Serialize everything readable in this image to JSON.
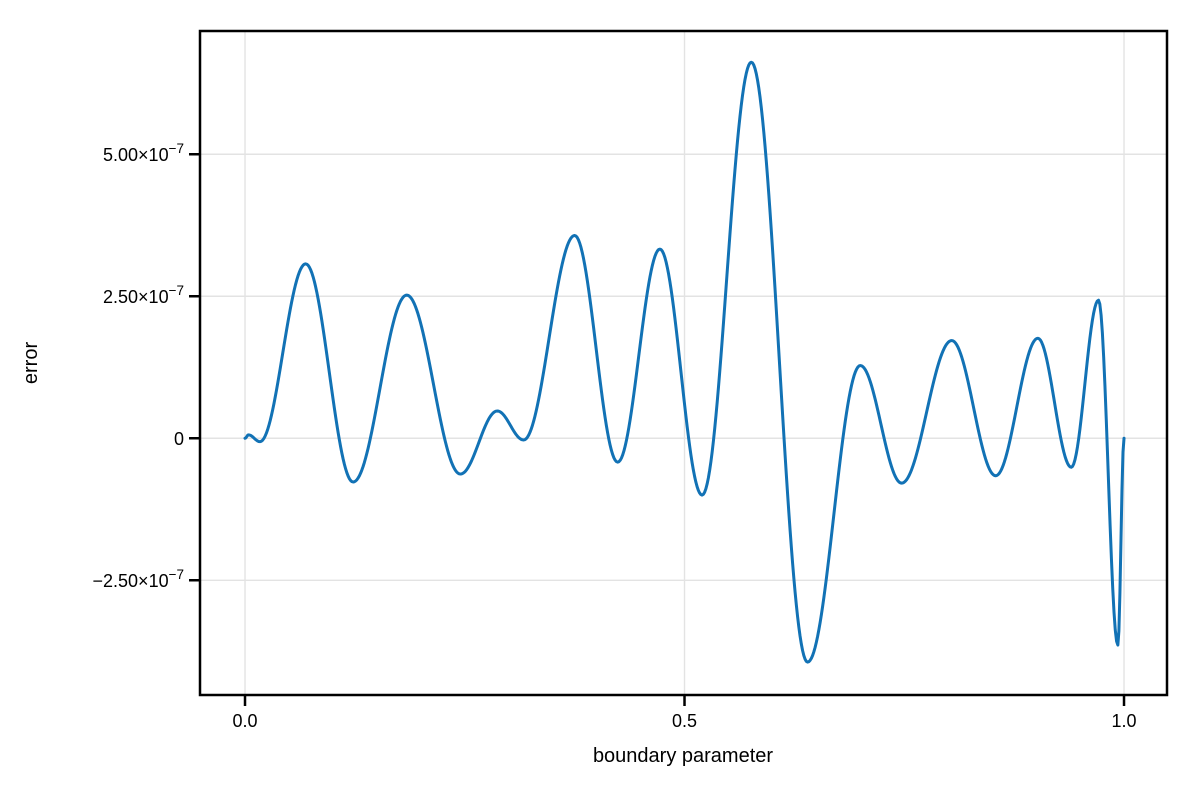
{
  "figure": {
    "background": "#ffffff",
    "frame_color": "#000000",
    "grid_color": "#e3e3e3",
    "tick_color": "#000000",
    "text_color": "#000000"
  },
  "chart_data": {
    "type": "line",
    "xlabel": "boundary parameter",
    "ylabel": "error",
    "grid": true,
    "legend": "none",
    "y_unit_scale": "1e-7",
    "xlim": [
      -0.0512,
      1.0489
    ],
    "ylim_e7": [
      -4.52,
      7.17
    ],
    "xticks": [
      {
        "value": 0.0,
        "label": "0.0"
      },
      {
        "value": 0.5,
        "label": "0.5"
      },
      {
        "value": 1.0,
        "label": "1.0"
      }
    ],
    "yticks": [
      {
        "value_e7": 5.0,
        "label": "5.00×10^−7"
      },
      {
        "value_e7": 2.5,
        "label": "2.50×10^−7"
      },
      {
        "value_e7": 0.0,
        "label": "0"
      },
      {
        "value_e7": -2.5,
        "label": "−2.50×10^−7"
      }
    ],
    "series": [
      {
        "name": "error",
        "color": "#1272b5",
        "line_width": 3,
        "interpolation": "cosine-through-extrema",
        "points_x": [
          0.0,
          0.004,
          0.017,
          0.069,
          0.123,
          0.184,
          0.245,
          0.287,
          0.317,
          0.375,
          0.424,
          0.472,
          0.52,
          0.576,
          0.64,
          0.7,
          0.747,
          0.804,
          0.854,
          0.902,
          0.94,
          0.971,
          0.993,
          1.0
        ],
        "points_y_e7": [
          0.0,
          0.06,
          -0.06,
          3.07,
          -0.77,
          2.52,
          -0.63,
          0.48,
          -0.03,
          3.57,
          -0.42,
          3.33,
          -1.0,
          6.62,
          -3.94,
          1.28,
          -0.79,
          1.72,
          -0.66,
          1.76,
          -0.51,
          2.43,
          -3.64,
          0.0
        ]
      }
    ]
  }
}
